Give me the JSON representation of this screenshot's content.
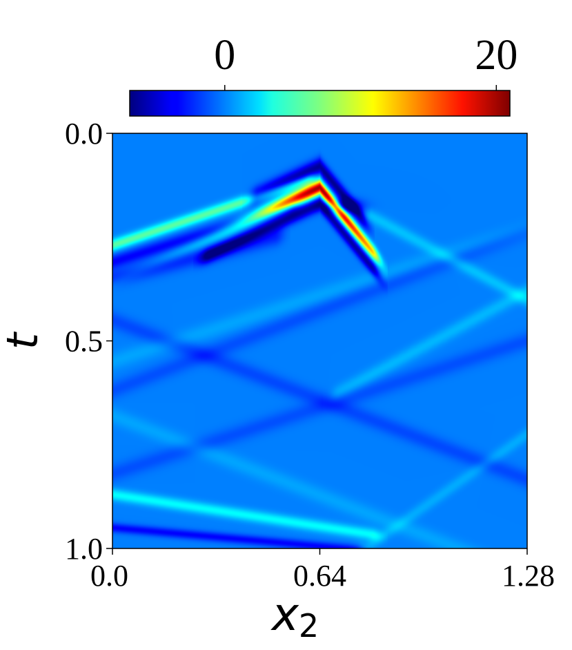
{
  "chart_data": {
    "type": "heatmap",
    "title": "",
    "xlabel": "x",
    "xlabel_subscript": "2",
    "ylabel": "t",
    "xlim": [
      0.0,
      1.28
    ],
    "ylim": [
      0.0,
      1.0
    ],
    "y_inverted": true,
    "x_ticks": [
      {
        "value": 0.0,
        "label": "0.0"
      },
      {
        "value": 0.64,
        "label": "0.64"
      },
      {
        "value": 1.28,
        "label": "1.28"
      }
    ],
    "y_ticks": [
      {
        "value": 0.0,
        "label": "0.0"
      },
      {
        "value": 0.5,
        "label": "0.5"
      },
      {
        "value": 1.0,
        "label": "1.0"
      }
    ],
    "colorbar": {
      "colormap": "jet",
      "range": [
        -7,
        21
      ],
      "ticks": [
        {
          "value": 0,
          "label": "0"
        },
        {
          "value": 20,
          "label": "20"
        }
      ],
      "orientation": "horizontal",
      "placement": "top"
    },
    "features": [
      {
        "kind": "positive_band",
        "x_peak": 0.64,
        "t_peak": 0.13,
        "slope_left": 0.36,
        "slope_right": 0.95,
        "amplitude": 20,
        "x_min": 0.0,
        "x_max": 0.8,
        "width": 0.012
      },
      {
        "kind": "negative_band",
        "x_peak": 0.64,
        "t_peak": 0.08,
        "slope_left": 0.36,
        "slope_right": 0.95,
        "amplitude": -6.5,
        "x_min": 0.45,
        "x_max": 0.76,
        "width": 0.014
      },
      {
        "kind": "negative_band",
        "x_peak": 0.64,
        "t_peak": 0.17,
        "slope_left": 0.36,
        "slope_right": 0.95,
        "amplitude": -6,
        "x_min": 0.3,
        "x_max": 0.8,
        "width": 0.012
      },
      {
        "kind": "negative_blob",
        "x": 0.71,
        "t": 0.175,
        "amplitude": -6,
        "sx": 0.04,
        "st": 0.012
      },
      {
        "kind": "positive_band",
        "x_peak": 0.0,
        "t_peak": 0.27,
        "slope_left": 0.0,
        "slope_right": -0.26,
        "amplitude": 6,
        "x_min": 0.0,
        "x_max": 0.6,
        "width": 0.01
      },
      {
        "kind": "negative_band",
        "x_peak": 0.0,
        "t_peak": 0.31,
        "slope_left": 0.0,
        "slope_right": -0.24,
        "amplitude": -3.5,
        "x_min": 0.0,
        "x_max": 0.55,
        "width": 0.012
      },
      {
        "kind": "negative_band",
        "x_peak": 0.0,
        "t_peak": 0.35,
        "slope_left": 0.0,
        "slope_right": -0.2,
        "amplitude": -2.5,
        "x_min": 0.0,
        "x_max": 0.5,
        "width": 0.015
      },
      {
        "kind": "positive_band",
        "x_peak": 0.8,
        "t_peak": 0.2,
        "slope_left": 0.0,
        "slope_right": 0.42,
        "amplitude": 1.8,
        "x_min": 0.8,
        "x_max": 1.28,
        "width": 0.012
      },
      {
        "kind": "positive_band",
        "x_peak": 1.28,
        "t_peak": 0.38,
        "slope_left": 0.42,
        "slope_right": 0.0,
        "amplitude": 1.5,
        "x_min": 0.7,
        "x_max": 1.28,
        "width": 0.013
      },
      {
        "kind": "negative_band",
        "x_peak": 0.0,
        "t_peak": 0.45,
        "slope_left": 0.0,
        "slope_right": 0.3,
        "amplitude": -1.5,
        "x_min": 0.0,
        "x_max": 1.28,
        "width": 0.015
      },
      {
        "kind": "negative_band",
        "x_peak": 0.0,
        "t_peak": 0.62,
        "slope_left": 0.0,
        "slope_right": -0.3,
        "amplitude": -1.3,
        "x_min": 0.0,
        "x_max": 1.28,
        "width": 0.015
      },
      {
        "kind": "positive_band",
        "x_peak": 0.0,
        "t_peak": 0.55,
        "slope_left": 0.0,
        "slope_right": -0.25,
        "amplitude": 1.0,
        "x_min": 0.0,
        "x_max": 1.28,
        "width": 0.015
      },
      {
        "kind": "positive_band",
        "x_peak": 0.0,
        "t_peak": 0.68,
        "slope_left": 0.0,
        "slope_right": 0.3,
        "amplitude": 1.0,
        "x_min": 0.0,
        "x_max": 1.28,
        "width": 0.015
      },
      {
        "kind": "negative_band",
        "x_peak": 0.0,
        "t_peak": 0.82,
        "slope_left": 0.0,
        "slope_right": -0.25,
        "amplitude": -1.3,
        "x_min": 0.0,
        "x_max": 1.28,
        "width": 0.015
      },
      {
        "kind": "positive_band",
        "x_peak": 0.0,
        "t_peak": 0.87,
        "slope_left": 0.0,
        "slope_right": 0.12,
        "amplitude": 3.5,
        "x_min": 0.0,
        "x_max": 0.8,
        "width": 0.01
      },
      {
        "kind": "negative_band",
        "x_peak": 0.0,
        "t_peak": 0.95,
        "slope_left": 0.0,
        "slope_right": 0.07,
        "amplitude": -3.5,
        "x_min": 0.0,
        "x_max": 0.75,
        "width": 0.008
      },
      {
        "kind": "positive_band",
        "x_peak": 0.78,
        "t_peak": 1.0,
        "slope_left": 0.0,
        "slope_right": -0.55,
        "amplitude": 1.2,
        "x_min": 0.78,
        "x_max": 1.28,
        "width": 0.012
      }
    ]
  }
}
